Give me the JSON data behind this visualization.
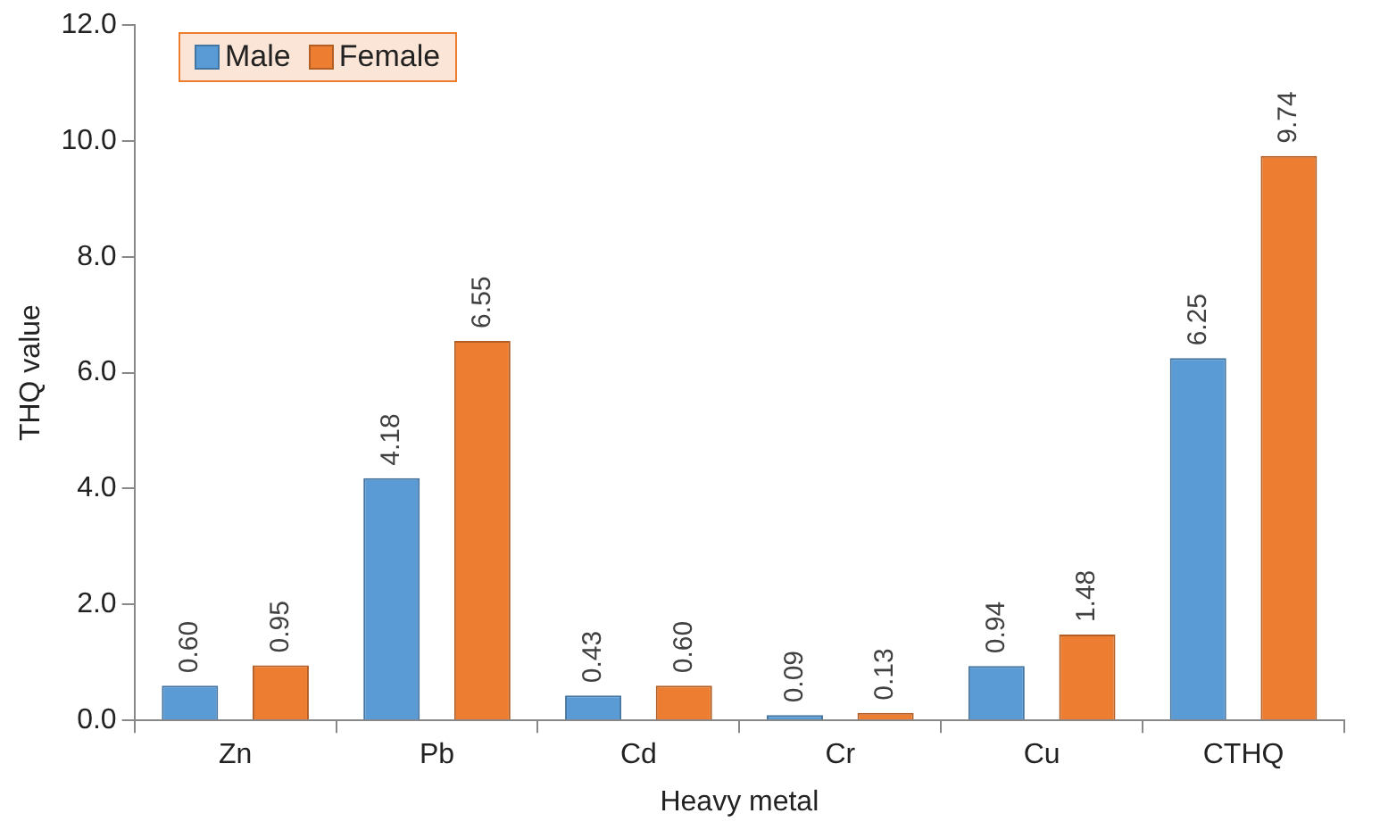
{
  "chart_data": {
    "type": "bar",
    "xlabel": "Heavy metal",
    "ylabel": "THQ value",
    "categories": [
      "Zn",
      "Pb",
      "Cd",
      "Cr",
      "Cu",
      "CTHQ"
    ],
    "series": [
      {
        "name": "Male",
        "color": "#5b9bd5",
        "values": [
          0.6,
          4.18,
          0.43,
          0.09,
          0.94,
          6.25
        ],
        "value_labels": [
          "0.60",
          "4.18",
          "0.43",
          "0.09",
          "0.94",
          "6.25"
        ]
      },
      {
        "name": "Female",
        "color": "#ed7d31",
        "values": [
          0.95,
          6.55,
          0.6,
          0.13,
          1.48,
          9.74
        ],
        "value_labels": [
          "0.95",
          "6.55",
          "0.60",
          "0.13",
          "1.48",
          "9.74"
        ]
      }
    ],
    "ylim": [
      0,
      12
    ],
    "yticks": [
      {
        "value": 0,
        "label": "0.0"
      },
      {
        "value": 2,
        "label": "2.0"
      },
      {
        "value": 4,
        "label": "4.0"
      },
      {
        "value": 6,
        "label": "6.0"
      },
      {
        "value": 8,
        "label": "8.0"
      },
      {
        "value": 10,
        "label": "10.0"
      },
      {
        "value": 12,
        "label": "12.0"
      }
    ],
    "grid": false,
    "legend": "top left"
  }
}
